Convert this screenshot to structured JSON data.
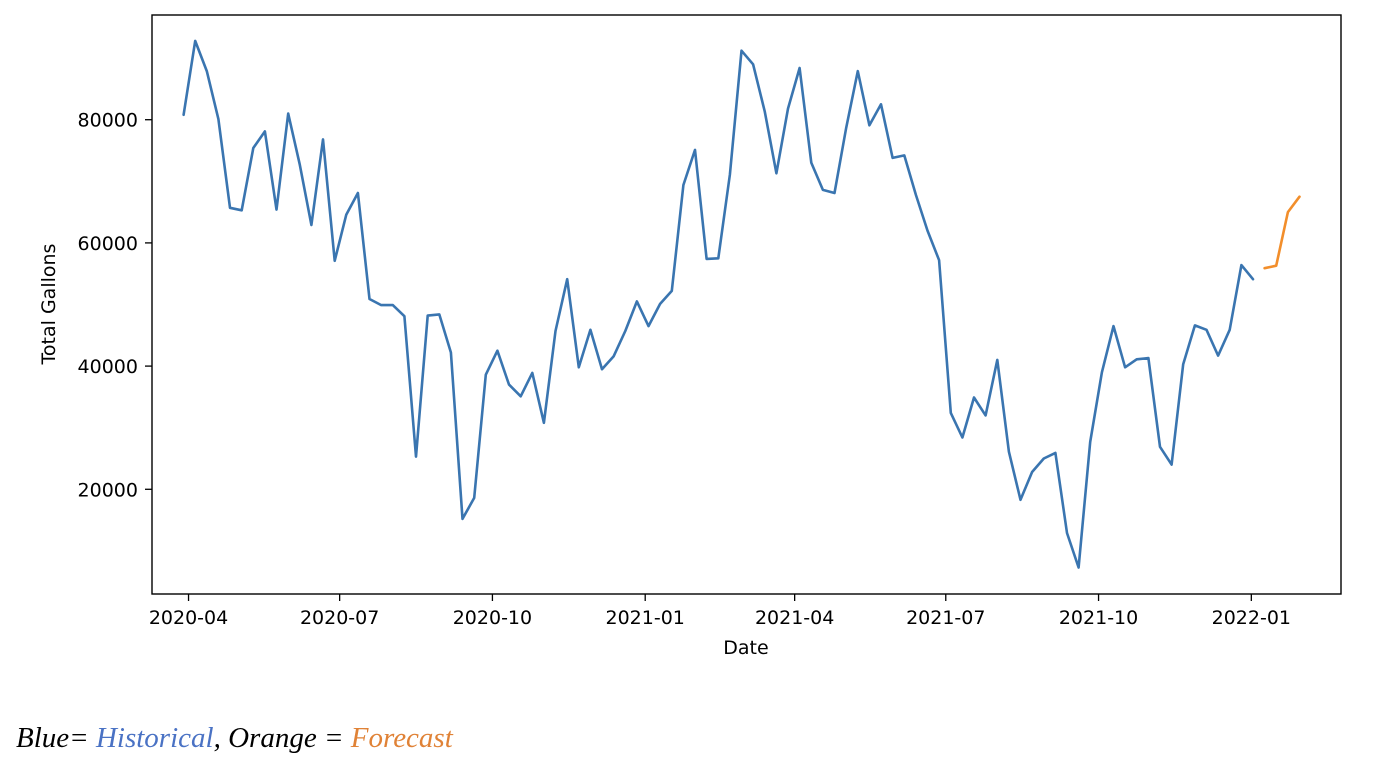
{
  "chart_data": {
    "type": "line",
    "title": "",
    "xlabel": "Date",
    "ylabel": "Total Gallons",
    "xlim": [
      "2020-03-10",
      "2022-02-24"
    ],
    "ylim": [
      3000,
      97000
    ],
    "x_ticks": [
      "2020-04-01",
      "2020-07-01",
      "2020-10-01",
      "2021-01-01",
      "2021-04-01",
      "2021-07-01",
      "2021-10-01",
      "2022-01-01"
    ],
    "x_tick_labels": [
      "2020-04",
      "2020-07",
      "2020-10",
      "2021-01",
      "2021-04",
      "2021-07",
      "2021-10",
      "2022-01"
    ],
    "y_ticks": [
      20000,
      40000,
      60000,
      80000
    ],
    "y_tick_labels": [
      "20000",
      "40000",
      "60000",
      "80000"
    ],
    "grid": false,
    "series": [
      {
        "color": "#3a75b0",
        "x": [
          "2020-03-29",
          "2020-04-05",
          "2020-04-12",
          "2020-04-19",
          "2020-04-26",
          "2020-05-03",
          "2020-05-10",
          "2020-05-17",
          "2020-05-24",
          "2020-05-31",
          "2020-06-07",
          "2020-06-14",
          "2020-06-21",
          "2020-06-28",
          "2020-07-05",
          "2020-07-12",
          "2020-07-19",
          "2020-07-26",
          "2020-08-02",
          "2020-08-09",
          "2020-08-16",
          "2020-08-23",
          "2020-08-30",
          "2020-09-06",
          "2020-09-13",
          "2020-09-20",
          "2020-09-27",
          "2020-10-04",
          "2020-10-11",
          "2020-10-18",
          "2020-10-25",
          "2020-11-01",
          "2020-11-08",
          "2020-11-15",
          "2020-11-22",
          "2020-11-29",
          "2020-12-06",
          "2020-12-13",
          "2020-12-20",
          "2020-12-27",
          "2021-01-03",
          "2021-01-10",
          "2021-01-17",
          "2021-01-24",
          "2021-01-31",
          "2021-02-07",
          "2021-02-14",
          "2021-02-21",
          "2021-02-28",
          "2021-03-07",
          "2021-03-14",
          "2021-03-21",
          "2021-03-28",
          "2021-04-04",
          "2021-04-11",
          "2021-04-18",
          "2021-04-25",
          "2021-05-02",
          "2021-05-09",
          "2021-05-16",
          "2021-05-23",
          "2021-05-30",
          "2021-06-06",
          "2021-06-13",
          "2021-06-20",
          "2021-06-27",
          "2021-07-04",
          "2021-07-11",
          "2021-07-18",
          "2021-07-25",
          "2021-08-01",
          "2021-08-08",
          "2021-08-15",
          "2021-08-22",
          "2021-08-29",
          "2021-09-05",
          "2021-09-12",
          "2021-09-19",
          "2021-09-26",
          "2021-10-03",
          "2021-10-10",
          "2021-10-17",
          "2021-10-24",
          "2021-10-31",
          "2021-11-07",
          "2021-11-14",
          "2021-11-21",
          "2021-11-28",
          "2021-12-05",
          "2021-12-12",
          "2021-12-19",
          "2021-12-26",
          "2022-01-02"
        ],
        "values": [
          80800,
          92800,
          87900,
          80100,
          65700,
          65300,
          75400,
          78100,
          65400,
          81000,
          72700,
          62900,
          76800,
          57100,
          64600,
          68100,
          50900,
          49900,
          49900,
          48100,
          25300,
          48200,
          48400,
          42200,
          15200,
          18600,
          38600,
          42500,
          37000,
          35100,
          38900,
          30800,
          45700,
          54100,
          39800,
          45900,
          39500,
          41600,
          45700,
          50500,
          46500,
          50100,
          52200,
          69400,
          75100,
          57400,
          57500,
          71100,
          91200,
          89000,
          81300,
          71300,
          81800,
          88400,
          73000,
          68600,
          68100,
          78600,
          87900,
          79100,
          82500,
          73800,
          74200,
          67800,
          62000,
          57200,
          32400,
          28400,
          34900,
          32000,
          41000,
          26100,
          18300,
          22800,
          25000,
          25900,
          12900,
          7300,
          27700,
          39000,
          46500,
          39800,
          41100,
          41300,
          26900,
          24000,
          40300,
          46600,
          45900,
          41700,
          45900,
          56400,
          54100
        ]
      },
      {
        "color": "#f28e2b",
        "x": [
          "2022-01-09",
          "2022-01-16",
          "2022-01-23",
          "2022-01-30"
        ],
        "values": [
          55900,
          56300,
          65000,
          67500
        ]
      }
    ]
  },
  "caption": {
    "prefix": "Blue= ",
    "historical": "Historical",
    "middle": ", Orange = ",
    "forecast": "Forecast"
  }
}
